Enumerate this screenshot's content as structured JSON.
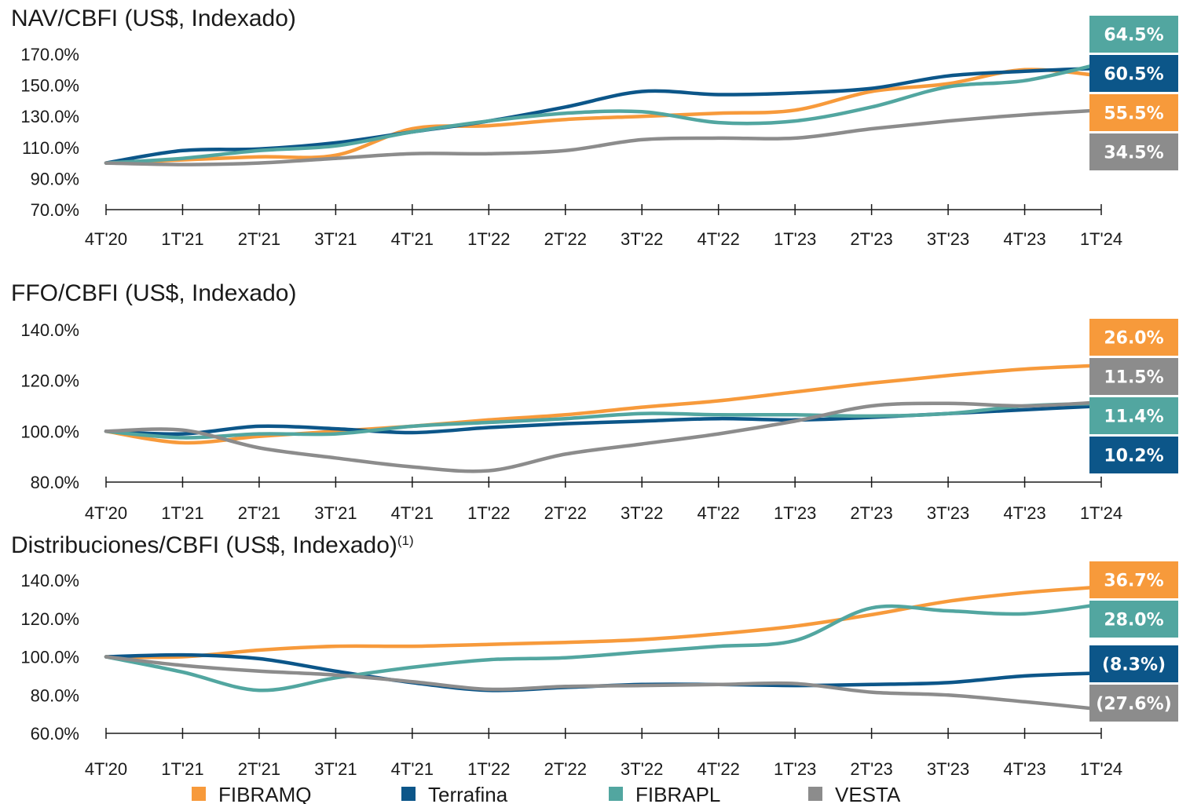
{
  "colors": {
    "FIBRAMQ": "#F79A3B",
    "Terrafina": "#0C5689",
    "FIBRAPL": "#52A6A0",
    "VESTA": "#8C8C8C"
  },
  "legend": [
    "FIBRAMQ",
    "Terrafina",
    "FIBRAPL",
    "VESTA"
  ],
  "chart_data": [
    {
      "type": "line",
      "title": "NAV/CBFI (US$, Indexado)",
      "title_sup": "",
      "categories": [
        "4T'20",
        "1T'21",
        "2T'21",
        "3T'21",
        "4T'21",
        "1T'22",
        "2T'22",
        "3T'22",
        "4T'22",
        "1T'23",
        "2T'23",
        "3T'23",
        "4T'23",
        "1T'24"
      ],
      "ylim": [
        70,
        170
      ],
      "yticks": [
        "70.0%",
        "90.0%",
        "110.0%",
        "130.0%",
        "150.0%",
        "170.0%"
      ],
      "yticks_values": [
        70,
        90,
        110,
        130,
        150,
        170
      ],
      "series": [
        {
          "name": "FIBRAMQ",
          "values": [
            100,
            102,
            104,
            105,
            122,
            124,
            128,
            130,
            132,
            134,
            146,
            151,
            160,
            156
          ]
        },
        {
          "name": "Terrafina",
          "values": [
            100,
            108,
            109,
            113,
            120,
            127,
            136,
            146,
            144,
            145,
            148,
            156,
            159,
            161
          ]
        },
        {
          "name": "FIBRAPL",
          "values": [
            100,
            103,
            108,
            111,
            120,
            127,
            132,
            133,
            126,
            127,
            136,
            149,
            153,
            164
          ]
        },
        {
          "name": "VESTA",
          "values": [
            100,
            99,
            100,
            103,
            106,
            106,
            108,
            115,
            116,
            116,
            122,
            127,
            131,
            134
          ]
        }
      ],
      "end_labels": [
        {
          "series": "FIBRAPL",
          "text": "64.5%"
        },
        {
          "series": "Terrafina",
          "text": "60.5%"
        },
        {
          "series": "FIBRAMQ",
          "text": "55.5%"
        },
        {
          "series": "VESTA",
          "text": "34.5%"
        }
      ]
    },
    {
      "type": "line",
      "title": "FFO/CBFI (US$, Indexado)",
      "title_sup": "",
      "categories": [
        "4T'20",
        "1T'21",
        "2T'21",
        "3T'21",
        "4T'21",
        "1T'22",
        "2T'22",
        "3T'22",
        "4T'22",
        "1T'23",
        "2T'23",
        "3T'23",
        "4T'23",
        "1T'24"
      ],
      "ylim": [
        80,
        140
      ],
      "yticks": [
        "80.0%",
        "100.0%",
        "120.0%",
        "140.0%"
      ],
      "yticks_values": [
        80,
        100,
        120,
        140
      ],
      "series": [
        {
          "name": "FIBRAMQ",
          "values": [
            100,
            95.5,
            98,
            100,
            102,
            104.5,
            106.5,
            109.5,
            112,
            115.5,
            119,
            122,
            124.5,
            126
          ]
        },
        {
          "name": "Terrafina",
          "values": [
            100,
            99,
            102,
            101,
            99.5,
            101.5,
            103,
            104,
            105,
            104.5,
            105.5,
            107,
            108.5,
            110
          ]
        },
        {
          "name": "FIBRAPL",
          "values": [
            100,
            97.5,
            99,
            99,
            102,
            103.5,
            105,
            107,
            106.5,
            106.5,
            106,
            107,
            110,
            111
          ]
        },
        {
          "name": "VESTA",
          "values": [
            100,
            100.5,
            93.5,
            89.5,
            86,
            84.5,
            91,
            95,
            99,
            104,
            110,
            111,
            110,
            111.5
          ]
        }
      ],
      "end_labels": [
        {
          "series": "FIBRAMQ",
          "text": "26.0%"
        },
        {
          "series": "VESTA",
          "text": "11.5%"
        },
        {
          "series": "FIBRAPL",
          "text": "11.4%"
        },
        {
          "series": "Terrafina",
          "text": "10.2%"
        }
      ]
    },
    {
      "type": "line",
      "title": "Distribuciones/CBFI (US$, Indexado)",
      "title_sup": "(1)",
      "categories": [
        "4T'20",
        "1T'21",
        "2T'21",
        "3T'21",
        "4T'21",
        "1T'22",
        "2T'22",
        "3T'22",
        "4T'22",
        "1T'23",
        "2T'23",
        "3T'23",
        "4T'23",
        "1T'24"
      ],
      "ylim": [
        60,
        140
      ],
      "yticks": [
        "60.0%",
        "80.0%",
        "100.0%",
        "120.0%",
        "140.0%"
      ],
      "yticks_values": [
        60,
        80,
        100,
        120,
        140
      ],
      "series": [
        {
          "name": "FIBRAMQ",
          "values": [
            100,
            100,
            103.5,
            105.5,
            105.5,
            106.5,
            107.5,
            109,
            112,
            116,
            122,
            129,
            133.5,
            136.5
          ]
        },
        {
          "name": "Terrafina",
          "values": [
            100,
            101,
            99,
            92.5,
            86.5,
            82.5,
            84,
            85.5,
            85.5,
            85,
            85.5,
            86.5,
            90,
            91.5
          ]
        },
        {
          "name": "FIBRAPL",
          "values": [
            100,
            92,
            82.5,
            89,
            94.5,
            98.5,
            99.5,
            102.5,
            105.5,
            108.5,
            125.5,
            124,
            122.5,
            127.5
          ]
        },
        {
          "name": "VESTA",
          "values": [
            100,
            95.5,
            92.5,
            90.5,
            87,
            83,
            84.5,
            85,
            85.5,
            86,
            81.5,
            80,
            76.5,
            72.5
          ]
        }
      ],
      "end_labels": [
        {
          "series": "FIBRAMQ",
          "text": "36.7%"
        },
        {
          "series": "FIBRAPL",
          "text": "28.0%"
        },
        {
          "series": "Terrafina",
          "text": "(8.3%)"
        },
        {
          "series": "VESTA",
          "text": "(27.6%)"
        }
      ]
    }
  ]
}
